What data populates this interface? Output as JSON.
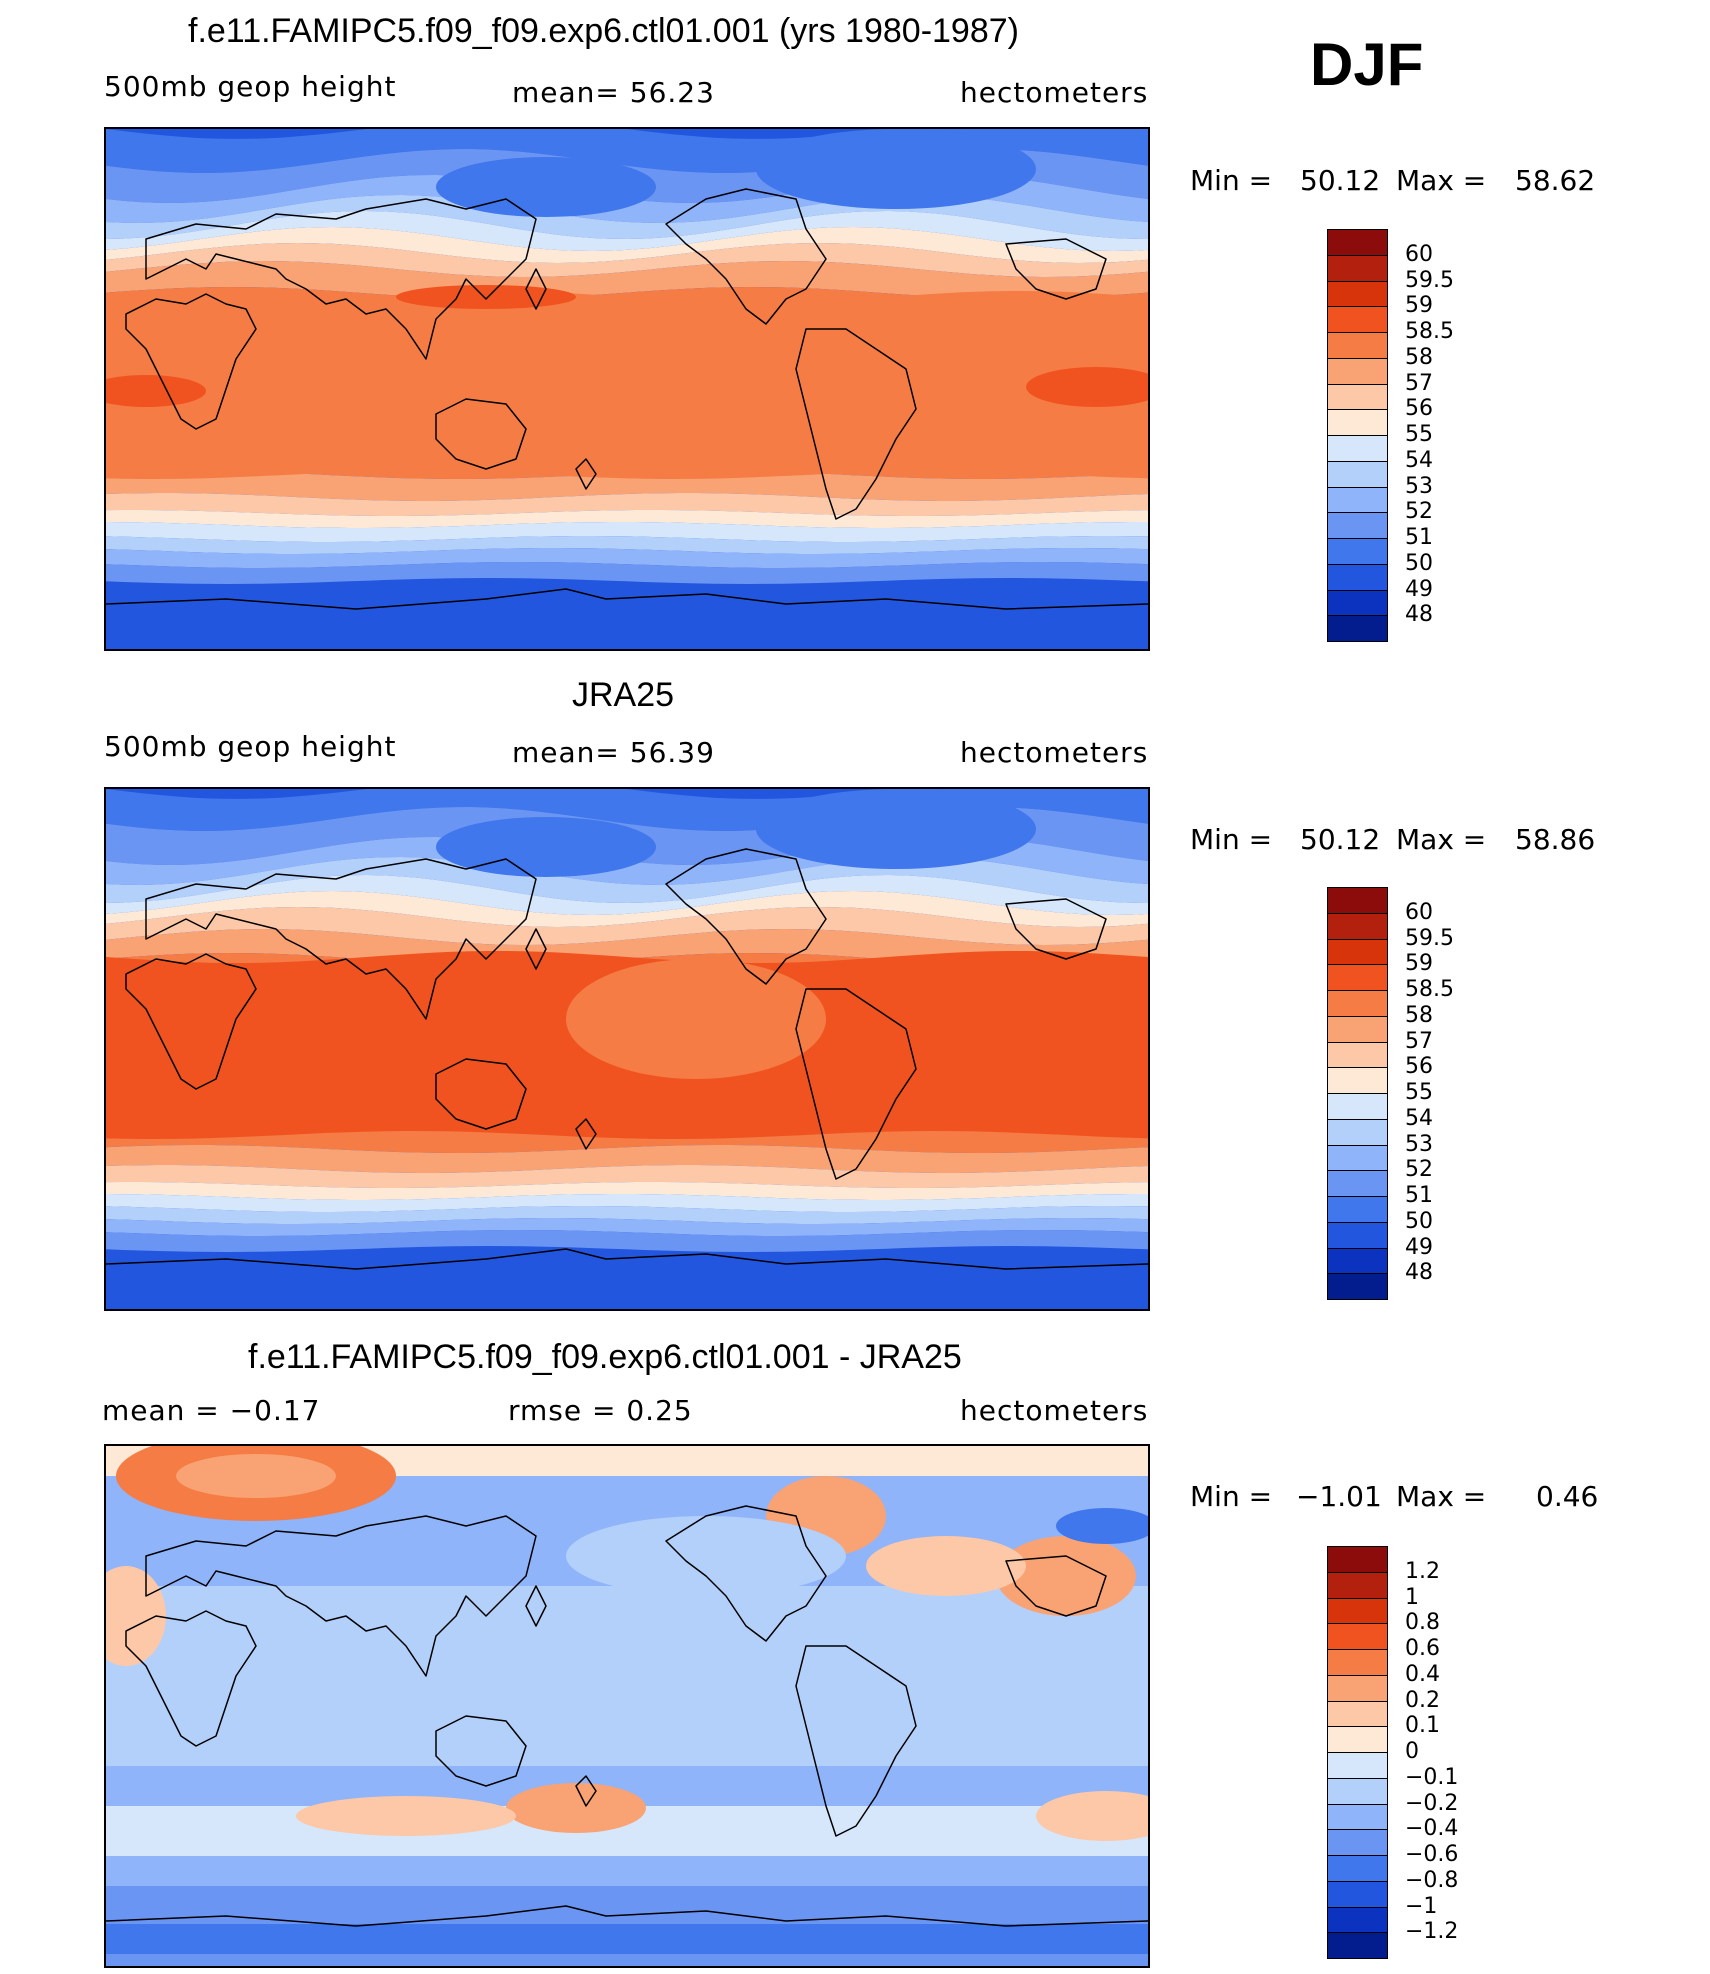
{
  "season": "DJF",
  "panels": [
    {
      "title": "f.e11.FAMIPC5.f09_f09.exp6.ctl01.001 (yrs 1980-1987)",
      "left": "500mb geop height",
      "center": "mean=  56.23",
      "right": "hectometers",
      "min_label": "Min =",
      "min_value": "50.12",
      "max_label": "Max =",
      "max_value": "58.62",
      "colorbar": {
        "labels": [
          "60",
          "59.5",
          "59",
          "58.5",
          "58",
          "57",
          "56",
          "55",
          "54",
          "53",
          "52",
          "51",
          "50",
          "49",
          "48"
        ],
        "colors": [
          "#8b0c0a",
          "#b3200e",
          "#d8340c",
          "#f0531f",
          "#f57c45",
          "#f9a273",
          "#fcc8a8",
          "#fde9d6",
          "#d6e7fb",
          "#b3d0fb",
          "#8fb4fa",
          "#6a95f3",
          "#4077ec",
          "#2356df",
          "#0b33c0",
          "#031c8e"
        ]
      },
      "map": {
        "model": "model",
        "field": "500mb geopotential height",
        "units": "hectometers"
      }
    },
    {
      "title": "JRA25",
      "left": "500mb geop height",
      "center": "mean=  56.39",
      "right": "hectometers",
      "min_label": "Min =",
      "min_value": "50.12",
      "max_label": "Max =",
      "max_value": "58.86",
      "colorbar": {
        "labels": [
          "60",
          "59.5",
          "59",
          "58.5",
          "58",
          "57",
          "56",
          "55",
          "54",
          "53",
          "52",
          "51",
          "50",
          "49",
          "48"
        ],
        "colors": [
          "#8b0c0a",
          "#b3200e",
          "#d8340c",
          "#f0531f",
          "#f57c45",
          "#f9a273",
          "#fcc8a8",
          "#fde9d6",
          "#d6e7fb",
          "#b3d0fb",
          "#8fb4fa",
          "#6a95f3",
          "#4077ec",
          "#2356df",
          "#0b33c0",
          "#031c8e"
        ]
      },
      "map": {
        "model": "obs",
        "field": "500mb geopotential height",
        "units": "hectometers"
      }
    },
    {
      "title": "f.e11.FAMIPC5.f09_f09.exp6.ctl01.001 - JRA25",
      "left": "mean =   −0.17",
      "center": "rmse =    0.25",
      "right": "hectometers",
      "min_label": "Min =",
      "min_value": "−1.01",
      "max_label": "Max =",
      "max_value": "0.46",
      "colorbar": {
        "labels": [
          "1.2",
          "1",
          "0.8",
          "0.6",
          "0.4",
          "0.2",
          "0.1",
          "0",
          "−0.1",
          "−0.2",
          "−0.4",
          "−0.6",
          "−0.8",
          "−1",
          "−1.2"
        ],
        "colors": [
          "#8b0c0a",
          "#b3200e",
          "#d8340c",
          "#f0531f",
          "#f57c45",
          "#f9a273",
          "#fcc8a8",
          "#fde9d6",
          "#d6e7fb",
          "#b3d0fb",
          "#8fb4fa",
          "#6a95f3",
          "#4077ec",
          "#2356df",
          "#0b33c0",
          "#031c8e"
        ]
      },
      "map": {
        "model": "diff",
        "field": "500mb geopotential height difference",
        "units": "hectometers"
      }
    }
  ]
}
